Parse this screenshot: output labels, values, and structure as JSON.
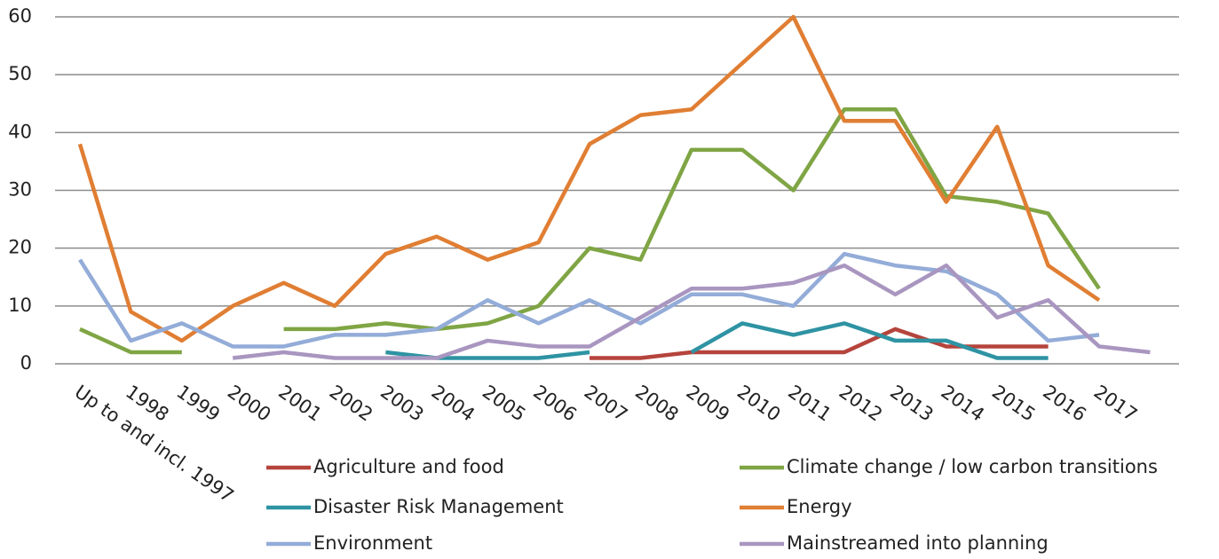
{
  "chart_data": {
    "type": "line",
    "categories": [
      "Up to and incl. 1997",
      "1998",
      "1999",
      "2000",
      "2001",
      "2002",
      "2003",
      "2004",
      "2005",
      "2006",
      "2007",
      "2008",
      "2009",
      "2010",
      "2011",
      "2012",
      "2013",
      "2014",
      "2015",
      "2016",
      "2017",
      null
    ],
    "series": [
      {
        "name": "Agriculture and food",
        "color": "#b5443c",
        "values": [
          null,
          null,
          null,
          null,
          null,
          null,
          null,
          null,
          null,
          null,
          1,
          1,
          2,
          2,
          2,
          2,
          6,
          3,
          3,
          3,
          null,
          null
        ]
      },
      {
        "name": "Climate change / low carbon transitions",
        "color": "#7fa544",
        "values": [
          6,
          2,
          2,
          null,
          6,
          6,
          7,
          6,
          7,
          10,
          20,
          18,
          37,
          37,
          30,
          44,
          44,
          29,
          28,
          26,
          13,
          null
        ]
      },
      {
        "name": "Disaster Risk Management",
        "color": "#2e93a3",
        "values": [
          null,
          null,
          null,
          null,
          null,
          null,
          2,
          1,
          1,
          1,
          2,
          null,
          2,
          7,
          5,
          7,
          4,
          4,
          1,
          1,
          null,
          null
        ]
      },
      {
        "name": "Energy",
        "color": "#e07e33",
        "values": [
          38,
          9,
          4,
          10,
          14,
          10,
          19,
          22,
          18,
          21,
          38,
          43,
          44,
          52,
          60,
          42,
          42,
          28,
          41,
          17,
          11,
          null
        ]
      },
      {
        "name": "Environment",
        "color": "#93acd8",
        "values": [
          18,
          4,
          7,
          3,
          3,
          5,
          5,
          6,
          11,
          7,
          11,
          7,
          12,
          12,
          10,
          19,
          17,
          16,
          12,
          4,
          5,
          null
        ]
      },
      {
        "name": "Mainstreamed into planning",
        "color": "#a996c0",
        "values": [
          null,
          null,
          null,
          1,
          2,
          1,
          1,
          1,
          4,
          3,
          3,
          8,
          13,
          13,
          14,
          17,
          12,
          17,
          8,
          11,
          3,
          2
        ]
      }
    ],
    "ylim": [
      0,
      60
    ],
    "yticks": [
      0,
      10,
      20,
      30,
      40,
      50,
      60
    ],
    "grid": true
  }
}
